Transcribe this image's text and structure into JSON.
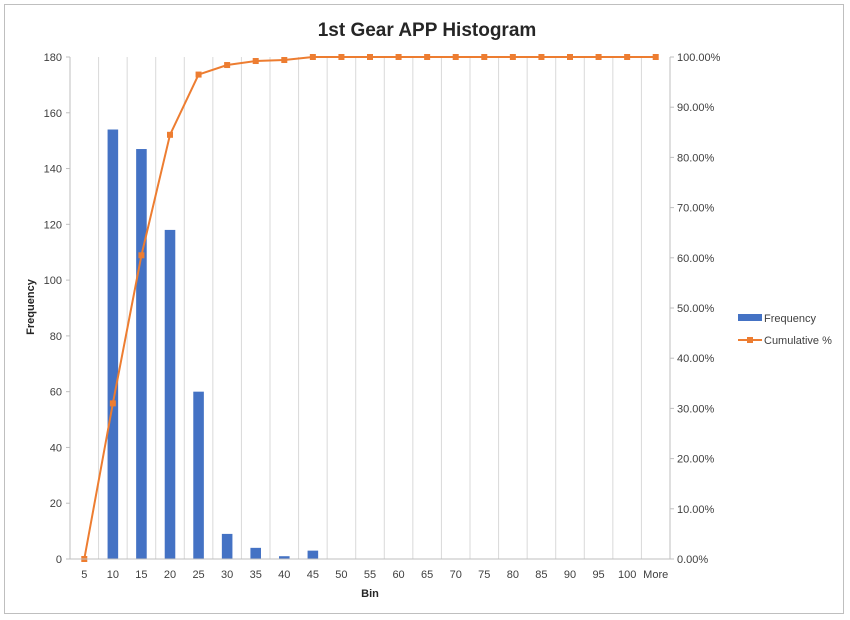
{
  "chart_data": {
    "type": "bar",
    "title": "1st Gear APP Histogram",
    "xlabel": "Bin",
    "ylabel": "Frequency",
    "categories": [
      "5",
      "10",
      "15",
      "20",
      "25",
      "30",
      "35",
      "40",
      "45",
      "50",
      "55",
      "60",
      "65",
      "70",
      "75",
      "80",
      "85",
      "90",
      "95",
      "100",
      "More"
    ],
    "ylim": [
      0,
      180
    ],
    "yticks": [
      "0",
      "20",
      "40",
      "60",
      "80",
      "100",
      "120",
      "140",
      "160",
      "180"
    ],
    "y2lim": [
      0,
      1
    ],
    "y2ticks": [
      "0.00%",
      "10.00%",
      "20.00%",
      "30.00%",
      "40.00%",
      "50.00%",
      "60.00%",
      "70.00%",
      "80.00%",
      "90.00%",
      "100.00%"
    ],
    "grid": "vertical",
    "legend": "right",
    "series": [
      {
        "name": "Frequency",
        "type": "bar",
        "axis": "left",
        "color": "#4472c4",
        "values": [
          0,
          154,
          147,
          118,
          60,
          9,
          4,
          1,
          3,
          0,
          0,
          0,
          0,
          0,
          0,
          0,
          0,
          0,
          0,
          0,
          0
        ]
      },
      {
        "name": "Cumulative %",
        "type": "line",
        "axis": "right",
        "color": "#ed7d31",
        "values": [
          0,
          0.31,
          0.605,
          0.845,
          0.965,
          0.984,
          0.992,
          0.994,
          1,
          1,
          1,
          1,
          1,
          1,
          1,
          1,
          1,
          1,
          1,
          1,
          1
        ]
      }
    ]
  }
}
